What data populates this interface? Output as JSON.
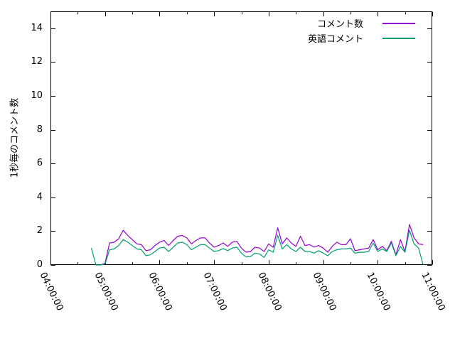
{
  "chart_data": {
    "type": "line",
    "title": "",
    "xlabel": "",
    "ylabel": "1秒毎のコメント数",
    "ylim": [
      0,
      15
    ],
    "y_tick_values": [
      0,
      2,
      4,
      6,
      8,
      10,
      12,
      14
    ],
    "y_tick_labels": [
      "0",
      "2",
      "4",
      "6",
      "8",
      "10",
      "12",
      "14"
    ],
    "x_range_minutes": [
      240,
      660
    ],
    "x_tick_labels": [
      "04:00:00",
      "05:00:00",
      "06:00:00",
      "07:00:00",
      "08:00:00",
      "09:00:00",
      "10:00:00",
      "11:00:00"
    ],
    "x_minor_tick_interval_minutes": 30,
    "grid": false,
    "legend_position": "top-right-inside",
    "axis_color": "#000000",
    "times": [
      "04:45",
      "04:50",
      "04:55",
      "05:00",
      "05:05",
      "05:10",
      "05:15",
      "05:20",
      "05:25",
      "05:30",
      "05:35",
      "05:40",
      "05:45",
      "05:50",
      "05:55",
      "06:00",
      "06:05",
      "06:10",
      "06:15",
      "06:20",
      "06:25",
      "06:30",
      "06:35",
      "06:40",
      "06:45",
      "06:50",
      "06:55",
      "07:00",
      "07:05",
      "07:10",
      "07:15",
      "07:20",
      "07:25",
      "07:30",
      "07:35",
      "07:40",
      "07:45",
      "07:50",
      "07:55",
      "08:00",
      "08:05",
      "08:10",
      "08:15",
      "08:20",
      "08:25",
      "08:30",
      "08:35",
      "08:40",
      "08:45",
      "08:50",
      "08:55",
      "09:00",
      "09:05",
      "09:10",
      "09:15",
      "09:20",
      "09:25",
      "09:30",
      "09:35",
      "09:40",
      "09:45",
      "09:50",
      "09:55",
      "10:00",
      "10:05",
      "10:10",
      "10:15",
      "10:20",
      "10:25",
      "10:30",
      "10:35",
      "10:40",
      "10:45",
      "10:50"
    ],
    "series": [
      {
        "name": "コメント数",
        "color": "#9400d3",
        "values": [
          null,
          null,
          0,
          0.1,
          1.3,
          1.35,
          1.55,
          2.05,
          1.75,
          1.5,
          1.25,
          1.2,
          0.85,
          0.9,
          1.15,
          1.35,
          1.45,
          1.15,
          1.45,
          1.7,
          1.75,
          1.6,
          1.25,
          1.45,
          1.6,
          1.6,
          1.3,
          1.05,
          1.15,
          1.3,
          1.1,
          1.35,
          1.4,
          1.0,
          0.76,
          0.8,
          1.05,
          1.0,
          0.8,
          1.25,
          1.05,
          2.2,
          1.25,
          1.6,
          1.3,
          1.1,
          1.7,
          1.15,
          1.2,
          1.05,
          1.15,
          1.0,
          0.75,
          1.1,
          1.35,
          1.2,
          1.2,
          1.55,
          0.85,
          0.9,
          0.95,
          1.0,
          1.5,
          0.9,
          1.1,
          0.85,
          1.4,
          0.6,
          1.5,
          0.8,
          2.4,
          1.6,
          1.25,
          1.2
        ]
      },
      {
        "name": "英語コメント",
        "color": "#009e73",
        "values": [
          1.0,
          0,
          0,
          0.05,
          0.9,
          0.95,
          1.15,
          1.5,
          1.35,
          1.15,
          0.95,
          0.9,
          0.55,
          0.6,
          0.8,
          1.0,
          1.05,
          0.8,
          1.05,
          1.3,
          1.35,
          1.2,
          0.9,
          1.05,
          1.2,
          1.2,
          1.0,
          0.8,
          0.85,
          0.97,
          0.85,
          1.0,
          1.05,
          0.7,
          0.48,
          0.5,
          0.7,
          0.65,
          0.45,
          0.9,
          0.75,
          1.75,
          0.95,
          1.2,
          0.95,
          0.8,
          1.05,
          0.8,
          0.8,
          0.7,
          0.85,
          0.7,
          0.55,
          0.8,
          0.9,
          0.95,
          0.95,
          1.0,
          0.7,
          0.75,
          0.75,
          0.8,
          1.3,
          0.8,
          0.95,
          0.8,
          1.3,
          0.55,
          1.1,
          0.75,
          2.05,
          1.25,
          1.0,
          0
        ]
      }
    ]
  }
}
